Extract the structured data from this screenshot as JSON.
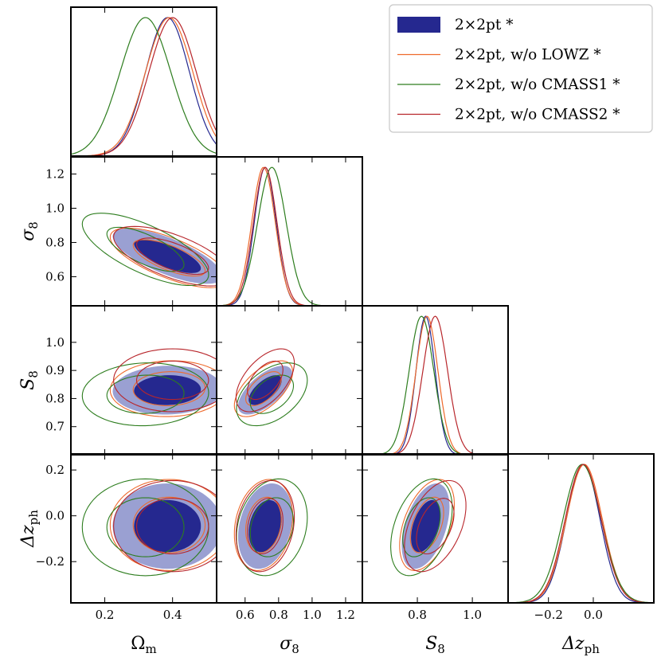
{
  "chart_data": {
    "type": "triangle",
    "title": "",
    "legend": {
      "placement": "top-right",
      "entries": [
        {
          "label": "2×2pt *",
          "color": "#25288f",
          "style": "filled"
        },
        {
          "label": "2×2pt, w/o LOWZ *",
          "color": "#ee6a2c",
          "style": "line"
        },
        {
          "label": "2×2pt, w/o CMASS1 *",
          "color": "#2d7d1e",
          "style": "line"
        },
        {
          "label": "2×2pt, w/o CMASS2 *",
          "color": "#b8262b",
          "style": "line"
        }
      ]
    },
    "parameters": [
      {
        "key": "Om",
        "label": "Ω",
        "sub": "m",
        "range": [
          0.1,
          0.53
        ],
        "ticks": [
          0.2,
          0.4
        ],
        "tick_labels": [
          "0.2",
          "0.4"
        ]
      },
      {
        "key": "s8",
        "label": "σ",
        "sub": "8",
        "range": [
          0.43,
          1.3
        ],
        "ticks": [
          0.6,
          0.8,
          1.0,
          1.2
        ],
        "tick_labels": [
          "0.6",
          "0.8",
          "1.0",
          "1.2"
        ]
      },
      {
        "key": "S8",
        "label": "S",
        "sub": "8",
        "range": [
          0.6,
          1.13
        ],
        "ticks": [
          0.7,
          0.8,
          0.9,
          1.0
        ],
        "tick_labels": [
          "0.7",
          "0.8",
          "0.9",
          "1.0"
        ],
        "x_ticks": [
          0.8,
          1.0
        ],
        "x_tick_labels": [
          "0.8",
          "1.0"
        ]
      },
      {
        "key": "dz",
        "label": "Δz",
        "sub": "ph",
        "range": [
          -0.38,
          0.27
        ],
        "ticks": [
          -0.2,
          0.0,
          0.2
        ],
        "tick_labels": [
          "−0.2",
          "0.0",
          "0.2"
        ],
        "x_ticks": [
          -0.2,
          0.0
        ],
        "x_tick_labels": [
          "−0.2",
          "0.0"
        ]
      }
    ],
    "series": [
      {
        "name": "2×2pt *",
        "mean": {
          "Om": 0.385,
          "s8": 0.72,
          "S8": 0.83,
          "dz": -0.045
        },
        "sd": {
          "Om": 0.065,
          "s8": 0.065,
          "S8": 0.035,
          "dz": 0.075
        },
        "corr": {
          "Om|s8": -0.72,
          "Om|S8": 0.05,
          "Om|dz": 0.0,
          "s8|S8": 0.65,
          "s8|dz": 0.25,
          "S8|dz": 0.45
        }
      },
      {
        "name": "2×2pt, w/o LOWZ *",
        "mean": {
          "Om": 0.39,
          "s8": 0.71,
          "S8": 0.835,
          "dz": -0.04
        },
        "sd": {
          "Om": 0.07,
          "s8": 0.07,
          "S8": 0.04,
          "dz": 0.08
        },
        "corr": {
          "Om|s8": -0.7,
          "Om|S8": 0.05,
          "Om|dz": 0.0,
          "s8|S8": 0.6,
          "s8|dz": 0.2,
          "S8|dz": 0.45
        }
      },
      {
        "name": "2×2pt, w/o CMASS1 *",
        "mean": {
          "Om": 0.32,
          "s8": 0.76,
          "S8": 0.815,
          "dz": -0.05
        },
        "sd": {
          "Om": 0.075,
          "s8": 0.085,
          "S8": 0.045,
          "dz": 0.085
        },
        "corr": {
          "Om|s8": -0.7,
          "Om|S8": 0.05,
          "Om|dz": 0.0,
          "s8|S8": 0.45,
          "s8|dz": 0.2,
          "S8|dz": 0.4
        }
      },
      {
        "name": "2×2pt, w/o CMASS2 *",
        "mean": {
          "Om": 0.4,
          "s8": 0.72,
          "S8": 0.865,
          "dz": -0.045
        },
        "sd": {
          "Om": 0.07,
          "s8": 0.07,
          "S8": 0.045,
          "dz": 0.08
        },
        "corr": {
          "Om|s8": -0.65,
          "Om|S8": 0.0,
          "Om|dz": 0.0,
          "s8|S8": 0.55,
          "s8|dz": 0.2,
          "S8|dz": 0.45
        }
      }
    ],
    "contour_levels": [
      "68%",
      "95%"
    ],
    "grid": false
  }
}
